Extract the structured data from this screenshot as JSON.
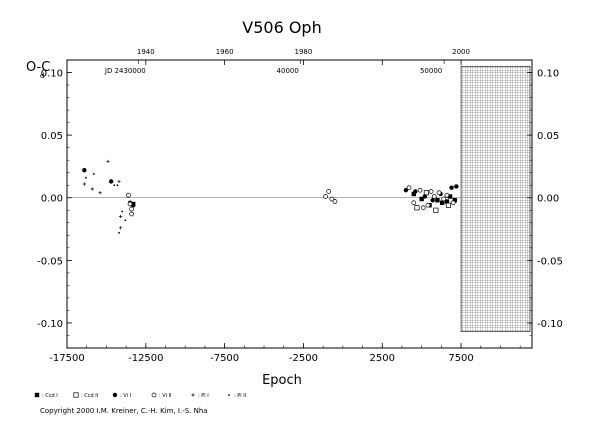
{
  "chart_data": {
    "type": "scatter",
    "title": "V506 Oph",
    "xlabel": "Epoch",
    "ylabel": "O-C",
    "ylabel_superscript": "d",
    "xlim": [
      -17500,
      12000
    ],
    "ylim": [
      -0.12,
      0.11
    ],
    "x_ticks": [
      "-17500",
      "-12500",
      "-7500",
      "-2500",
      "2500",
      "7500"
    ],
    "x_tick_values": [
      -17500,
      -12500,
      -7500,
      -2500,
      2500,
      7500
    ],
    "y_tick_values": [
      -0.1,
      -0.05,
      0.0,
      0.05,
      0.1
    ],
    "y_ticks_left": [
      "-0.10",
      "-0.05",
      "0.00",
      "0.05",
      "0.10"
    ],
    "y_ticks_right": [
      "-0.10",
      "-0.05",
      "0.00",
      "0.05",
      "0.10"
    ],
    "top_year_ticks": [
      {
        "label": "1940",
        "epoch": -12500
      },
      {
        "label": "1960",
        "epoch": -7500
      },
      {
        "label": "1980",
        "epoch": -2500
      },
      {
        "label": "2000",
        "epoch": 7500
      }
    ],
    "top_jd_ticks": [
      {
        "label": "JD 2430000",
        "epoch": -13800
      },
      {
        "label": "40000",
        "epoch": -3500
      },
      {
        "label": "50000",
        "epoch": 5600
      }
    ],
    "hatched_from_epoch": 7500,
    "series": [
      {
        "name": ": Ccd  I",
        "marker": "filled-square",
        "x": [
          -13300,
          4500,
          5000,
          5500,
          6000,
          6300,
          6600,
          6800,
          7100
        ],
        "y": [
          -0.005,
          0.003,
          -0.001,
          -0.006,
          -0.002,
          -0.004,
          -0.003,
          0.001,
          -0.002
        ]
      },
      {
        "name": ": Ccd  II",
        "marker": "open-square",
        "x": [
          4700,
          5300,
          5900,
          6700
        ],
        "y": [
          -0.008,
          0.004,
          -0.01,
          -0.006
        ]
      },
      {
        "name": ": Vi  I",
        "marker": "filled-circle",
        "x": [
          -16400,
          -14700,
          -13500,
          -13300,
          4000,
          4600,
          5200,
          5700,
          6200,
          6900,
          7200
        ],
        "y": [
          0.022,
          0.013,
          -0.004,
          -0.006,
          0.006,
          0.005,
          0.001,
          -0.002,
          0.003,
          0.008,
          0.009
        ]
      },
      {
        "name": ": Vi  II",
        "marker": "open-circle",
        "x": [
          -13600,
          -13500,
          -13400,
          -13400,
          -1100,
          -900,
          -700,
          -500,
          4200,
          4500,
          4900,
          5100,
          5400,
          5600,
          5800,
          6100,
          6400,
          6600,
          7000
        ],
        "y": [
          0.002,
          -0.005,
          -0.009,
          -0.013,
          0.001,
          0.005,
          -0.001,
          -0.003,
          0.008,
          -0.004,
          0.006,
          -0.008,
          -0.006,
          0.005,
          0.001,
          0.004,
          -0.001,
          0.002,
          -0.004
        ]
      },
      {
        "name": ": Pl  I",
        "marker": "plus",
        "x": [
          -16400,
          -15900,
          -15400,
          -14900,
          -14200,
          -14100,
          -14100
        ],
        "y": [
          0.011,
          0.007,
          0.004,
          0.029,
          0.013,
          -0.015,
          -0.024
        ]
      },
      {
        "name": ": Pl  II",
        "marker": "dot",
        "x": [
          -16300,
          -15800,
          -14500,
          -14300,
          -14200,
          -14000,
          -13800
        ],
        "y": [
          0.016,
          0.019,
          0.01,
          0.01,
          -0.028,
          -0.011,
          -0.018
        ]
      }
    ]
  },
  "copyright": "Copyright 2000 I.M. Kreiner, C.-H. Kim, I.-S. Nha"
}
